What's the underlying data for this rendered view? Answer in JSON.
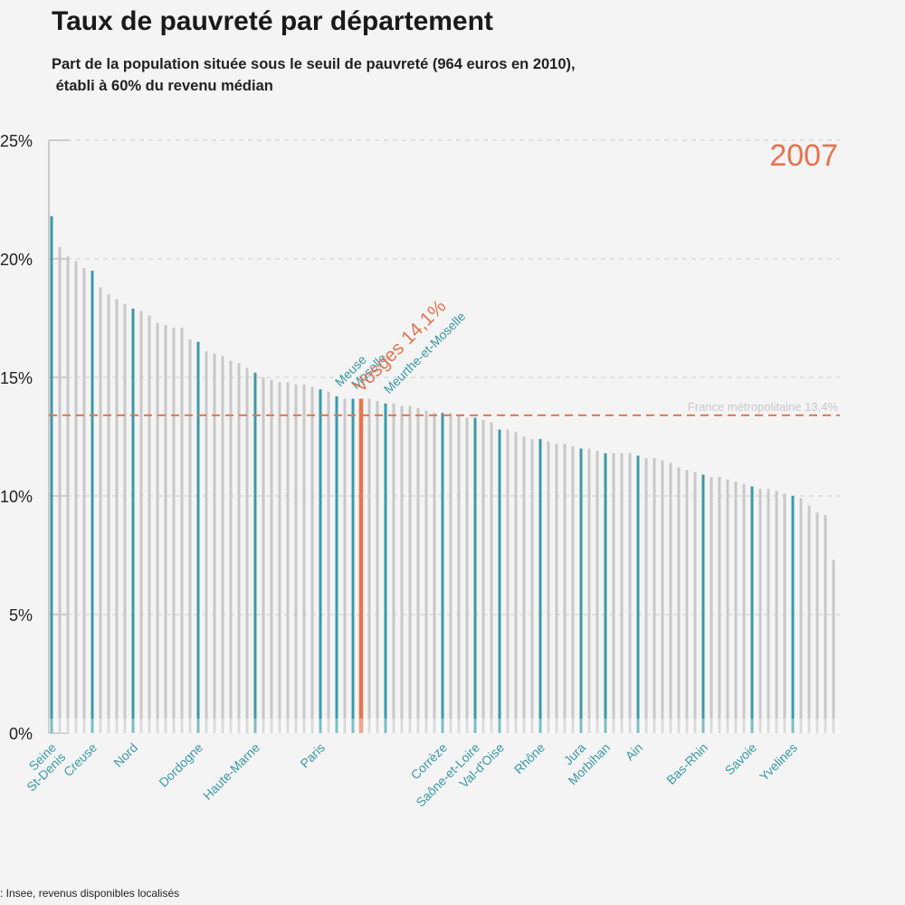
{
  "chart_data": {
    "type": "bar",
    "title": "Taux de pauvreté par département",
    "subtitle_lines": [
      "Part de la population située sous le seuil de pauvreté (964 euros en 2010),",
      " établi à 60% du revenu médian"
    ],
    "year_label": "2007",
    "source": ": Insee, revenus disponibles localisés",
    "ylim": [
      0,
      25
    ],
    "yticks": [
      0,
      5,
      10,
      15,
      20,
      25
    ],
    "ytick_labels": [
      "0%",
      "5%",
      "10%",
      "15%",
      "20%",
      "25%"
    ],
    "grid": "dashed",
    "reference": {
      "label": "France métropolitaine 13,4%",
      "value": 13.4
    },
    "values": [
      21.8,
      20.5,
      20.1,
      19.9,
      19.6,
      19.5,
      18.8,
      18.5,
      18.3,
      18.1,
      17.9,
      17.8,
      17.6,
      17.3,
      17.2,
      17.1,
      17.1,
      16.6,
      16.5,
      16.1,
      16.0,
      15.9,
      15.7,
      15.6,
      15.4,
      15.2,
      15.0,
      14.9,
      14.8,
      14.8,
      14.7,
      14.7,
      14.6,
      14.5,
      14.4,
      14.2,
      14.1,
      14.1,
      14.1,
      14.1,
      14.0,
      13.9,
      13.9,
      13.8,
      13.8,
      13.7,
      13.6,
      13.5,
      13.5,
      13.5,
      13.4,
      13.3,
      13.3,
      13.2,
      13.1,
      12.8,
      12.8,
      12.7,
      12.5,
      12.4,
      12.4,
      12.3,
      12.2,
      12.2,
      12.1,
      12.0,
      12.0,
      11.9,
      11.8,
      11.8,
      11.8,
      11.8,
      11.7,
      11.6,
      11.6,
      11.5,
      11.4,
      11.2,
      11.1,
      11.0,
      10.9,
      10.8,
      10.8,
      10.7,
      10.6,
      10.5,
      10.4,
      10.3,
      10.3,
      10.2,
      10.1,
      10.0,
      9.9,
      9.6,
      9.3,
      9.2,
      7.3
    ],
    "highlighted": [
      {
        "index": 0,
        "label": "Seine\nSt-Denis"
      },
      {
        "index": 5,
        "label": "Creuse"
      },
      {
        "index": 10,
        "label": "Nord"
      },
      {
        "index": 18,
        "label": "Dordogne"
      },
      {
        "index": 25,
        "label": "Haute-Marne"
      },
      {
        "index": 33,
        "label": "Paris"
      },
      {
        "index": 35,
        "label": "Meuse"
      },
      {
        "index": 37,
        "label": "Moselle"
      },
      {
        "index": 41,
        "label": "Meurthe-et-Moselle"
      },
      {
        "index": 48,
        "label": "Corrèze"
      },
      {
        "index": 52,
        "label": "Saône-et-Loire"
      },
      {
        "index": 55,
        "label": "Val-d'Oise"
      },
      {
        "index": 60,
        "label": "Rhône"
      },
      {
        "index": 65,
        "label": "Jura"
      },
      {
        "index": 68,
        "label": "Morbihan"
      },
      {
        "index": 72,
        "label": "Ain"
      },
      {
        "index": 80,
        "label": "Bas-Rhin"
      },
      {
        "index": 86,
        "label": "Savoie"
      },
      {
        "index": 91,
        "label": "Yvelines"
      }
    ],
    "featured": {
      "index": 38,
      "label": "Vosges 14,1%"
    },
    "colors": {
      "default": "#c8c8c8",
      "highlight": "#3a9aa8",
      "featured": "#e8734f",
      "reference": "#e8734f",
      "grid": "#cccccc"
    }
  }
}
